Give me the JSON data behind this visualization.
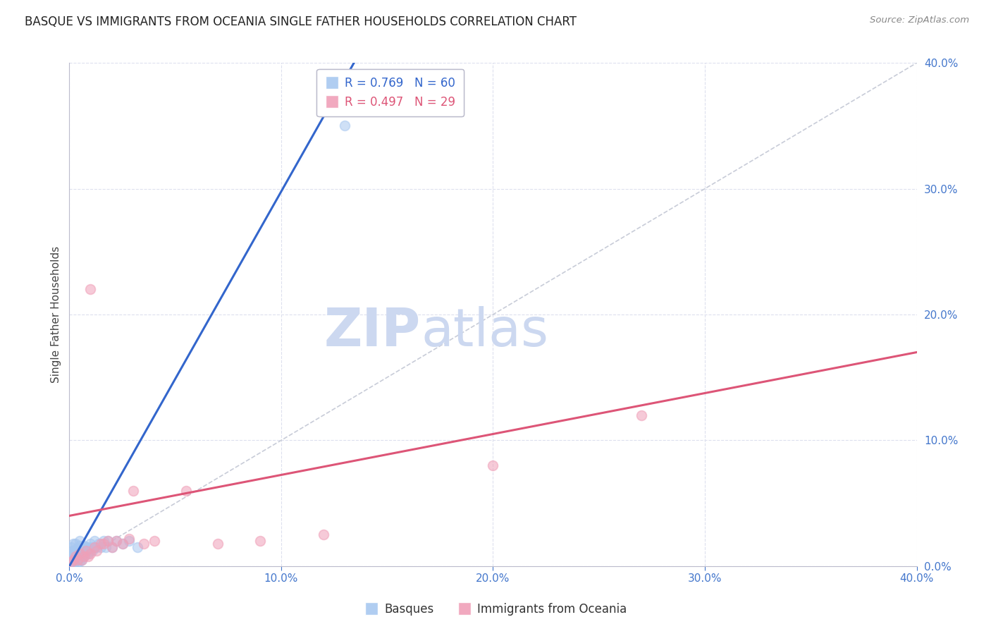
{
  "title": "BASQUE VS IMMIGRANTS FROM OCEANIA SINGLE FATHER HOUSEHOLDS CORRELATION CHART",
  "source": "Source: ZipAtlas.com",
  "ylabel": "Single Father Households",
  "xlim": [
    0,
    0.4
  ],
  "ylim": [
    0,
    0.4
  ],
  "xticks": [
    0.0,
    0.1,
    0.2,
    0.3,
    0.4
  ],
  "yticks": [
    0.0,
    0.1,
    0.2,
    0.3,
    0.4
  ],
  "blue_R": 0.769,
  "blue_N": 60,
  "pink_R": 0.497,
  "pink_N": 29,
  "blue_scatter_color": "#a8c8f0",
  "pink_scatter_color": "#f0a0b8",
  "blue_line_color": "#3366cc",
  "pink_line_color": "#dd5577",
  "ref_line_color": "#c8ccd8",
  "title_color": "#222222",
  "tick_label_color": "#4477cc",
  "grid_color": "#dde0ee",
  "watermark_color": "#ccd8f0",
  "legend_label1": "Basques",
  "legend_label2": "Immigrants from Oceania",
  "blue_line_slope": 3.0,
  "blue_line_intercept": -0.003,
  "pink_line_slope": 0.325,
  "pink_line_intercept": 0.04,
  "blue_scatter_x": [
    0.0005,
    0.001,
    0.001,
    0.001,
    0.0015,
    0.0015,
    0.002,
    0.002,
    0.002,
    0.002,
    0.0025,
    0.0025,
    0.003,
    0.003,
    0.003,
    0.003,
    0.0035,
    0.0035,
    0.004,
    0.004,
    0.004,
    0.0045,
    0.0045,
    0.005,
    0.005,
    0.005,
    0.005,
    0.005,
    0.0055,
    0.006,
    0.006,
    0.006,
    0.0065,
    0.007,
    0.007,
    0.007,
    0.0075,
    0.008,
    0.008,
    0.0085,
    0.009,
    0.009,
    0.01,
    0.01,
    0.011,
    0.011,
    0.012,
    0.012,
    0.013,
    0.014,
    0.015,
    0.016,
    0.017,
    0.018,
    0.02,
    0.022,
    0.025,
    0.028,
    0.032,
    0.13
  ],
  "blue_scatter_y": [
    0.005,
    0.008,
    0.01,
    0.015,
    0.003,
    0.012,
    0.005,
    0.008,
    0.012,
    0.018,
    0.004,
    0.01,
    0.005,
    0.008,
    0.012,
    0.018,
    0.006,
    0.014,
    0.003,
    0.007,
    0.01,
    0.006,
    0.012,
    0.004,
    0.008,
    0.012,
    0.016,
    0.02,
    0.01,
    0.005,
    0.009,
    0.015,
    0.012,
    0.008,
    0.012,
    0.016,
    0.014,
    0.01,
    0.015,
    0.012,
    0.01,
    0.015,
    0.012,
    0.018,
    0.012,
    0.015,
    0.015,
    0.02,
    0.015,
    0.018,
    0.015,
    0.02,
    0.015,
    0.02,
    0.015,
    0.02,
    0.018,
    0.02,
    0.015,
    0.35
  ],
  "pink_scatter_x": [
    0.001,
    0.002,
    0.003,
    0.004,
    0.005,
    0.006,
    0.007,
    0.008,
    0.009,
    0.01,
    0.012,
    0.013,
    0.015,
    0.016,
    0.018,
    0.02,
    0.022,
    0.025,
    0.028,
    0.03,
    0.035,
    0.04,
    0.055,
    0.07,
    0.09,
    0.12,
    0.2,
    0.27,
    0.01
  ],
  "pink_scatter_y": [
    0.003,
    0.005,
    0.008,
    0.005,
    0.01,
    0.005,
    0.008,
    0.012,
    0.008,
    0.01,
    0.015,
    0.012,
    0.018,
    0.018,
    0.02,
    0.015,
    0.02,
    0.018,
    0.022,
    0.06,
    0.018,
    0.02,
    0.06,
    0.018,
    0.02,
    0.025,
    0.08,
    0.12,
    0.22
  ]
}
